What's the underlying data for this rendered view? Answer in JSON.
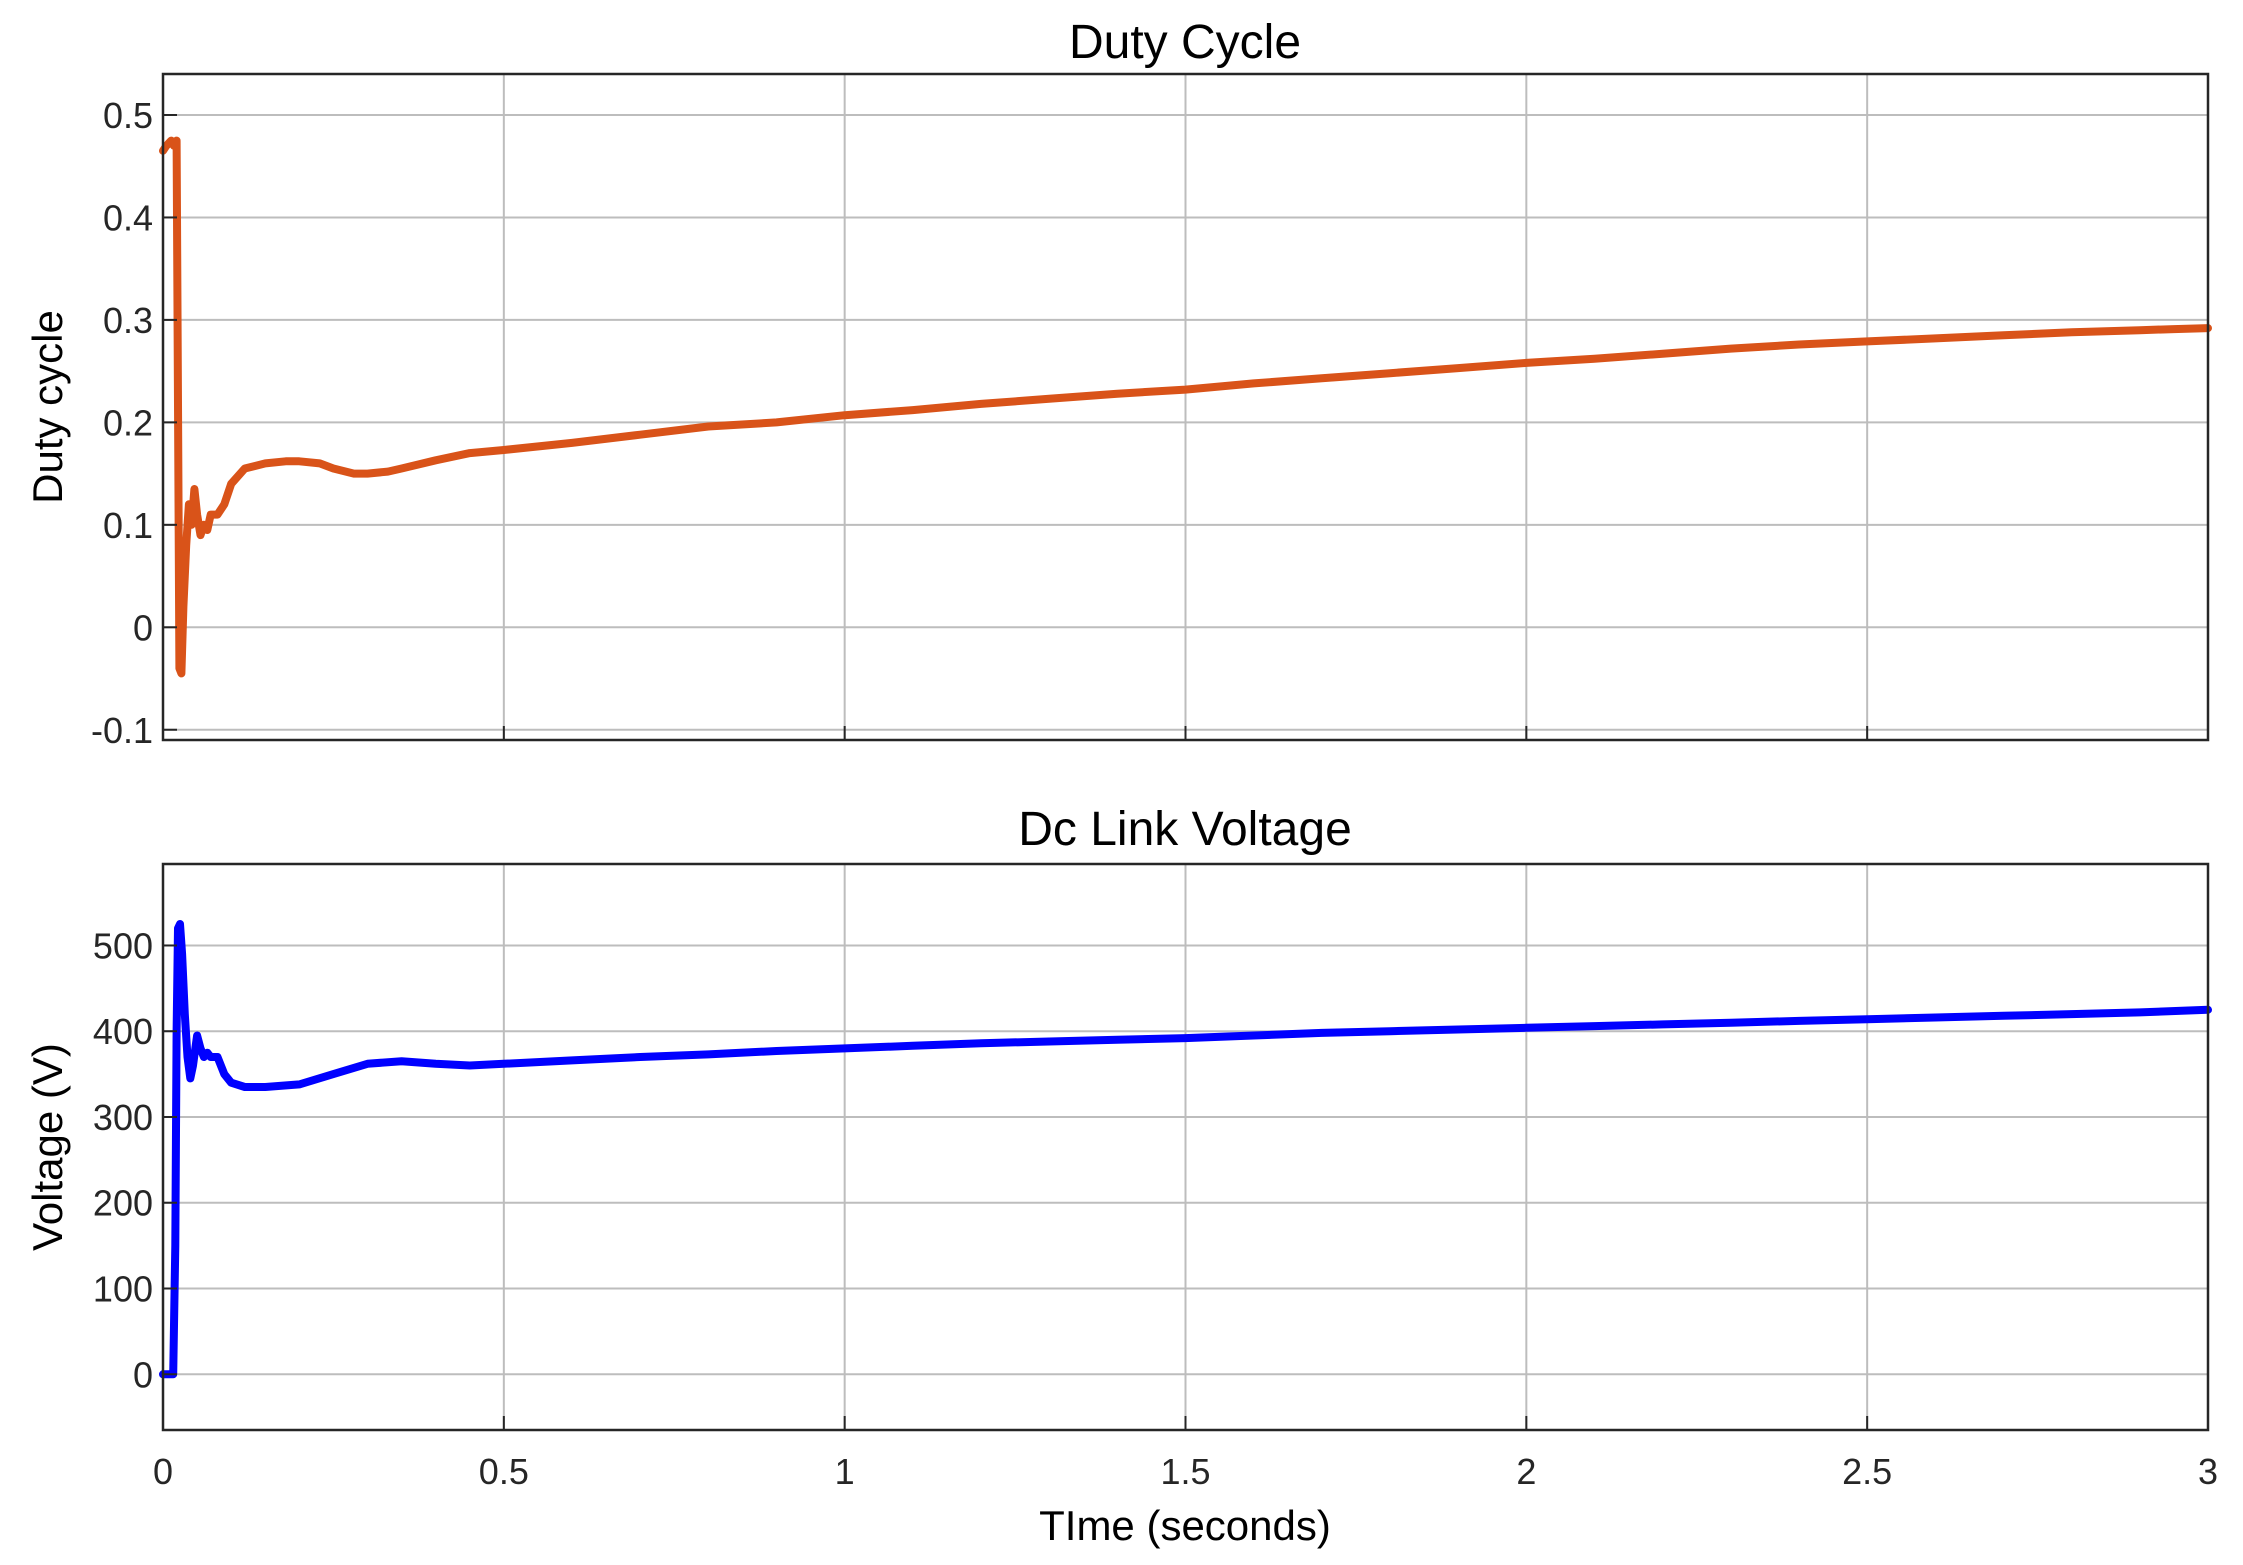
{
  "chart_data": [
    {
      "type": "line",
      "title": "Duty Cycle",
      "xlabel": "",
      "ylabel": "Duty cycle",
      "xlim": [
        0,
        3
      ],
      "ylim": [
        -0.11,
        0.54
      ],
      "x_ticks": [
        0,
        0.5,
        1,
        1.5,
        2,
        2.5,
        3
      ],
      "x_tick_labels_shown": false,
      "y_ticks": [
        -0.1,
        0,
        0.1,
        0.2,
        0.3,
        0.4,
        0.5
      ],
      "y_tick_labels": [
        "-0.1",
        "0",
        "0.1",
        "0.2",
        "0.3",
        "0.4",
        "0.5"
      ],
      "grid": true,
      "color": "#d95319",
      "series": [
        {
          "x": [
            0,
            0.005,
            0.012,
            0.016,
            0.02,
            0.024,
            0.027,
            0.03,
            0.034,
            0.038,
            0.042,
            0.046,
            0.05,
            0.055,
            0.06,
            0.065,
            0.07,
            0.08,
            0.09,
            0.1,
            0.12,
            0.15,
            0.18,
            0.2,
            0.23,
            0.25,
            0.28,
            0.3,
            0.33,
            0.35,
            0.4,
            0.45,
            0.5,
            0.6,
            0.7,
            0.8,
            0.9,
            1.0,
            1.1,
            1.2,
            1.3,
            1.4,
            1.5,
            1.6,
            1.7,
            1.8,
            1.9,
            2.0,
            2.1,
            2.2,
            2.3,
            2.4,
            2.5,
            2.6,
            2.7,
            2.8,
            2.9,
            2.95,
            3.0
          ],
          "y": [
            0.465,
            0.47,
            0.475,
            0.47,
            0.475,
            -0.04,
            -0.045,
            0.02,
            0.08,
            0.12,
            0.1,
            0.135,
            0.11,
            0.09,
            0.1,
            0.095,
            0.11,
            0.11,
            0.12,
            0.14,
            0.155,
            0.16,
            0.162,
            0.162,
            0.16,
            0.155,
            0.15,
            0.15,
            0.152,
            0.155,
            0.163,
            0.17,
            0.173,
            0.18,
            0.188,
            0.196,
            0.2,
            0.207,
            0.212,
            0.218,
            0.223,
            0.228,
            0.232,
            0.238,
            0.243,
            0.248,
            0.253,
            0.258,
            0.262,
            0.267,
            0.272,
            0.276,
            0.279,
            0.282,
            0.285,
            0.288,
            0.29,
            0.291,
            0.292
          ]
        }
      ]
    },
    {
      "type": "line",
      "title": "Dc Link Voltage",
      "xlabel": "TIme (seconds)",
      "ylabel": "Voltage (V)",
      "xlim": [
        0,
        3
      ],
      "ylim": [
        -65,
        595
      ],
      "x_ticks": [
        0,
        0.5,
        1,
        1.5,
        2,
        2.5,
        3
      ],
      "x_tick_labels": [
        "0",
        "0.5",
        "1",
        "1.5",
        "2",
        "2.5",
        "3"
      ],
      "y_ticks": [
        0,
        100,
        200,
        300,
        400,
        500
      ],
      "y_tick_labels": [
        "0",
        "100",
        "200",
        "300",
        "400",
        "500"
      ],
      "grid": true,
      "color": "#0000ff",
      "series": [
        {
          "x": [
            0,
            0.015,
            0.018,
            0.02,
            0.022,
            0.025,
            0.028,
            0.032,
            0.036,
            0.04,
            0.044,
            0.05,
            0.055,
            0.06,
            0.065,
            0.07,
            0.08,
            0.09,
            0.1,
            0.12,
            0.15,
            0.2,
            0.25,
            0.3,
            0.35,
            0.4,
            0.45,
            0.5,
            0.6,
            0.7,
            0.8,
            0.9,
            1.0,
            1.1,
            1.2,
            1.3,
            1.4,
            1.5,
            1.6,
            1.7,
            1.8,
            1.9,
            2.0,
            2.1,
            2.2,
            2.3,
            2.4,
            2.5,
            2.6,
            2.7,
            2.8,
            2.9,
            3.0
          ],
          "y": [
            0,
            0,
            150,
            400,
            520,
            525,
            490,
            420,
            370,
            345,
            360,
            395,
            380,
            370,
            375,
            370,
            370,
            350,
            340,
            335,
            335,
            338,
            350,
            362,
            365,
            362,
            360,
            362,
            366,
            370,
            373,
            377,
            380,
            383,
            386,
            388,
            390,
            392,
            395,
            398,
            400,
            402,
            404,
            406,
            408,
            410,
            412,
            414,
            416,
            418,
            420,
            422,
            425
          ]
        }
      ]
    }
  ]
}
